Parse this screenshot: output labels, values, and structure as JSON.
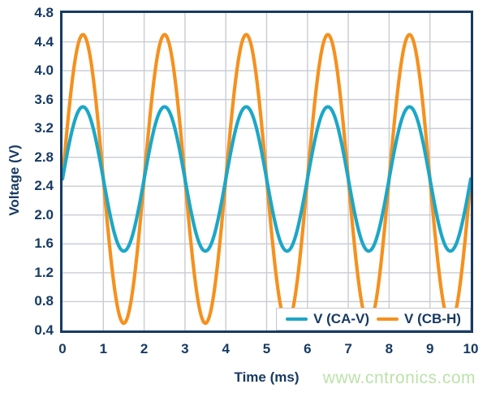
{
  "watermark": {
    "text": "www.cntronics.com",
    "color": "#BCE2AB"
  },
  "colors": {
    "axis_text": "#173A63",
    "plot_border": "#173A63",
    "grid": "#C9CCD4",
    "background": "#FFFFFF",
    "legend_border": "#C4C7CE"
  },
  "legend": {
    "position": "bottom-right-inside",
    "entries": [
      {
        "label": "V (CA-V)",
        "color": "#1CA7C7"
      },
      {
        "label": "V (CB-H)",
        "color": "#F5911E"
      }
    ]
  },
  "chart_data": {
    "type": "line",
    "xlabel": "Time (ms)",
    "ylabel": "Voltage (V)",
    "xlim": [
      0,
      10
    ],
    "ylim": [
      0.4,
      4.8
    ],
    "x_ticks": [
      "0",
      "1",
      "2",
      "3",
      "4",
      "5",
      "6",
      "7",
      "8",
      "9",
      "10"
    ],
    "y_ticks": [
      "4.8",
      "4.4",
      "4.0",
      "3.6",
      "3.2",
      "2.8",
      "2.4",
      "2.0",
      "1.6",
      "1.2",
      "0.8",
      "0.4"
    ],
    "grid": true,
    "legend_position": "bottom-right-inside",
    "series": [
      {
        "name": "V (CA-V)",
        "color": "#1CA7C7",
        "waveform": "sine",
        "offset_v": 2.5,
        "amplitude_v": 1.0,
        "period_ms": 2.0,
        "phase_deg": 0,
        "x_ms": [
          0,
          0.5,
          1,
          1.5,
          2,
          2.5,
          3,
          3.5,
          4,
          4.5,
          5,
          5.5,
          6,
          6.5,
          7,
          7.5,
          8,
          8.5,
          9,
          9.5,
          10
        ],
        "y_v": [
          2.5,
          3.5,
          2.5,
          1.5,
          2.5,
          3.5,
          2.5,
          1.5,
          2.5,
          3.5,
          2.5,
          1.5,
          2.5,
          3.5,
          2.5,
          1.5,
          2.5,
          3.5,
          2.5,
          1.5,
          2.5
        ]
      },
      {
        "name": "V (CB-H)",
        "color": "#F5911E",
        "waveform": "sine",
        "offset_v": 2.5,
        "amplitude_v": 2.0,
        "period_ms": 2.0,
        "phase_deg": 0,
        "x_ms": [
          0,
          0.5,
          1,
          1.5,
          2,
          2.5,
          3,
          3.5,
          4,
          4.5,
          5,
          5.5,
          6,
          6.5,
          7,
          7.5,
          8,
          8.5,
          9,
          9.5,
          10
        ],
        "y_v": [
          2.5,
          4.5,
          2.5,
          0.5,
          2.5,
          4.5,
          2.5,
          0.5,
          2.5,
          4.5,
          2.5,
          0.5,
          2.5,
          4.5,
          2.5,
          0.5,
          2.5,
          4.5,
          2.5,
          0.5,
          2.5
        ]
      }
    ]
  }
}
